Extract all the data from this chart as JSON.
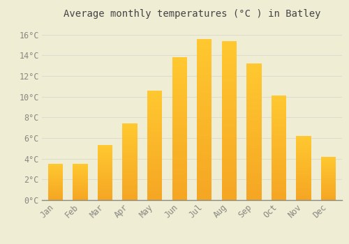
{
  "title": "Average monthly temperatures (°C ) in Batley",
  "months": [
    "Jan",
    "Feb",
    "Mar",
    "Apr",
    "May",
    "Jun",
    "Jul",
    "Aug",
    "Sep",
    "Oct",
    "Nov",
    "Dec"
  ],
  "temperatures": [
    3.5,
    3.5,
    5.3,
    7.4,
    10.6,
    13.8,
    15.6,
    15.4,
    13.2,
    10.1,
    6.2,
    4.2
  ],
  "bar_color": "#FFC125",
  "bar_bottom_color": "#F5A623",
  "background_color": "#F0EDD5",
  "grid_color": "#DDDDCC",
  "text_color": "#888880",
  "axis_color": "#888880",
  "ylim": [
    0,
    17
  ],
  "yticks": [
    0,
    2,
    4,
    6,
    8,
    10,
    12,
    14,
    16
  ],
  "title_fontsize": 10,
  "tick_fontsize": 8.5,
  "bar_width": 0.6
}
